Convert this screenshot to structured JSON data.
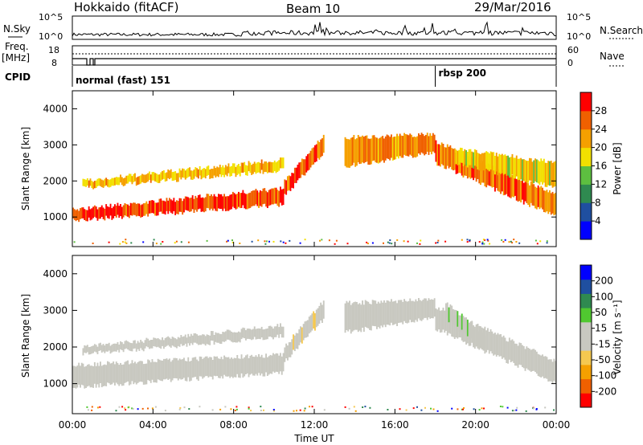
{
  "header": {
    "station": "Hokkaido (fitACF)",
    "beam": "Beam 10",
    "date": "29/Mar/2016"
  },
  "top_panels": {
    "nsky_label": "N.Sky",
    "nsky_ticks": [
      "10^5",
      "10^0"
    ],
    "nsearch_label": "N.Search",
    "nsearch_ticks": [
      "10^5",
      "10^0"
    ],
    "freq_label_line1": "Freq.",
    "freq_label_line2": "[MHz]",
    "freq_ticks": [
      "18",
      "8"
    ],
    "nave_label": "Nave",
    "nave_ticks": [
      "60",
      "0"
    ],
    "cpid_label": "CPID",
    "modes": [
      {
        "name": "normal (fast) 151",
        "start_hour": 0.0
      },
      {
        "name": "rbsp 200",
        "start_hour": 18.0
      }
    ]
  },
  "colors": {
    "power_scale": [
      "#0000ff",
      "#1f4fa0",
      "#2f8a50",
      "#5dbf40",
      "#f2e000",
      "#f5a000",
      "#f06000",
      "#ff0000"
    ],
    "velocity_scale": [
      "#ff0000",
      "#f06000",
      "#f5a000",
      "#f5c850",
      "#c8c8c0",
      "#c8c8c0",
      "#50c830",
      "#2f8a50",
      "#1f4fa0",
      "#0000ff"
    ]
  },
  "chart_data": [
    {
      "type": "heatmap",
      "panel": "power",
      "xlabel": "",
      "ylabel": "Slant Range [km]",
      "xlim_hours": [
        0,
        24
      ],
      "ylim_km": [
        180,
        4500
      ],
      "y_ticks": [
        "1000",
        "2000",
        "3000",
        "4000"
      ],
      "colorbar_label": "Power [dB]",
      "colorbar_ticks": [
        "4",
        "8",
        "12",
        "16",
        "20",
        "24",
        "28"
      ],
      "colorbar_range": [
        0,
        30
      ],
      "echo_bands": [
        {
          "t": [
            0.0,
            10.5
          ],
          "r_start": [
            900,
            1350
          ],
          "r_end": [
            1200,
            1800
          ],
          "level": 26
        },
        {
          "t": [
            0.5,
            10.5
          ],
          "r_start": [
            1800,
            2300
          ],
          "r_end": [
            2000,
            2600
          ],
          "level": 19
        },
        {
          "t": [
            10.5,
            12.5
          ],
          "r_start": [
            1600,
            2800
          ],
          "r_end": [
            2000,
            3300
          ],
          "level": 24
        },
        {
          "t": [
            13.5,
            18.0
          ],
          "r_start": [
            2400,
            2800
          ],
          "r_end": [
            3200,
            3300
          ],
          "level": 22
        },
        {
          "t": [
            18.0,
            24.0
          ],
          "r_start": [
            2500,
            1000
          ],
          "r_end": [
            3100,
            1600
          ],
          "level": 24
        },
        {
          "t": [
            19.0,
            24.0
          ],
          "r_start": [
            2500,
            1800
          ],
          "r_end": [
            2900,
            2500
          ],
          "level": 18
        }
      ]
    },
    {
      "type": "heatmap",
      "panel": "velocity",
      "xlabel": "Time UT",
      "ylabel": "Slant Range [km]",
      "xlim_hours": [
        0,
        24
      ],
      "ylim_km": [
        180,
        4500
      ],
      "x_ticks": [
        "00:00",
        "04:00",
        "08:00",
        "12:00",
        "16:00",
        "20:00",
        "00:00"
      ],
      "y_ticks": [
        "1000",
        "2000",
        "3000",
        "4000"
      ],
      "colorbar_label": "Velocity [m s⁻¹]",
      "colorbar_ticks": [
        "-200",
        "-100",
        "-50",
        "-15",
        "15",
        "50",
        "100",
        "200"
      ],
      "echo_bands": [
        {
          "t": [
            0.0,
            10.5
          ],
          "r_start": [
            900,
            1300
          ],
          "r_end": [
            1500,
            1800
          ],
          "level": 0
        },
        {
          "t": [
            0.5,
            10.5
          ],
          "r_start": [
            1800,
            2300
          ],
          "r_end": [
            2000,
            2600
          ],
          "level": 0
        },
        {
          "t": [
            10.5,
            12.5
          ],
          "r_start": [
            1600,
            2800
          ],
          "r_end": [
            2000,
            3300
          ],
          "level": -40
        },
        {
          "t": [
            13.5,
            18.0
          ],
          "r_start": [
            2400,
            2800
          ],
          "r_end": [
            3200,
            3300
          ],
          "level": 0
        },
        {
          "t": [
            18.0,
            24.0
          ],
          "r_start": [
            2500,
            1000
          ],
          "r_end": [
            3100,
            1600
          ],
          "level": 0
        },
        {
          "t": [
            18.5,
            20.5
          ],
          "r_start": [
            2800,
            1800
          ],
          "r_end": [
            3200,
            2300
          ],
          "level": 40
        }
      ]
    }
  ]
}
